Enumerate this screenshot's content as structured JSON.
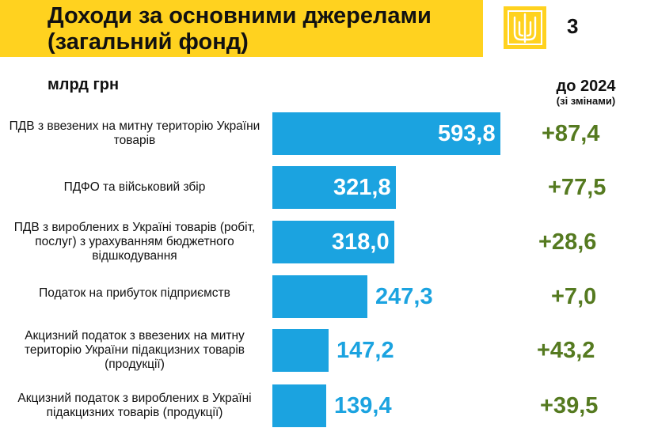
{
  "header": {
    "title": "Доходи за основними джерелами (загальний фонд)",
    "page_number": "3",
    "emblem_icon": "ukraine-trident-icon"
  },
  "units_label": "млрд грн",
  "change_header": {
    "main": "до 2024",
    "sub": "(зі змінами)"
  },
  "colors": {
    "accent_yellow": "#ffd21f",
    "bar": "#1ba3e0",
    "change_green": "#557a20"
  },
  "chart_data": {
    "type": "bar",
    "orientation": "horizontal",
    "title": "Доходи за основними джерелами (загальний фонд)",
    "unit": "млрд грн",
    "categories": [
      "ПДВ з ввезених на митну територію України товарів",
      "ПДФО та військовий збір",
      "ПДВ з вироблених в Україні товарів (робіт, послуг) з урахуванням бюджетного відшкодування",
      "Податок на прибуток підприємств",
      "Акцизний податок з ввезених на митну територію України підакцизних товарів (продукції)",
      "Акцизний податок з вироблених в Україні підакцизних товарів (продукції)"
    ],
    "values": [
      593.8,
      321.8,
      318.0,
      247.3,
      147.2,
      139.4
    ],
    "value_labels": [
      "593,8",
      "321,8",
      "318,0",
      "247,3",
      "147,2",
      "139,4"
    ],
    "changes": [
      87.4,
      77.5,
      28.6,
      7.0,
      43.2,
      39.5
    ],
    "change_labels": [
      "+87,4",
      "+77,5",
      "+28,6",
      "+7,0",
      "+43,2",
      "+39,5"
    ],
    "change_column_title": "до 2024 (зі змінами)",
    "grid": false,
    "legend": "none"
  }
}
